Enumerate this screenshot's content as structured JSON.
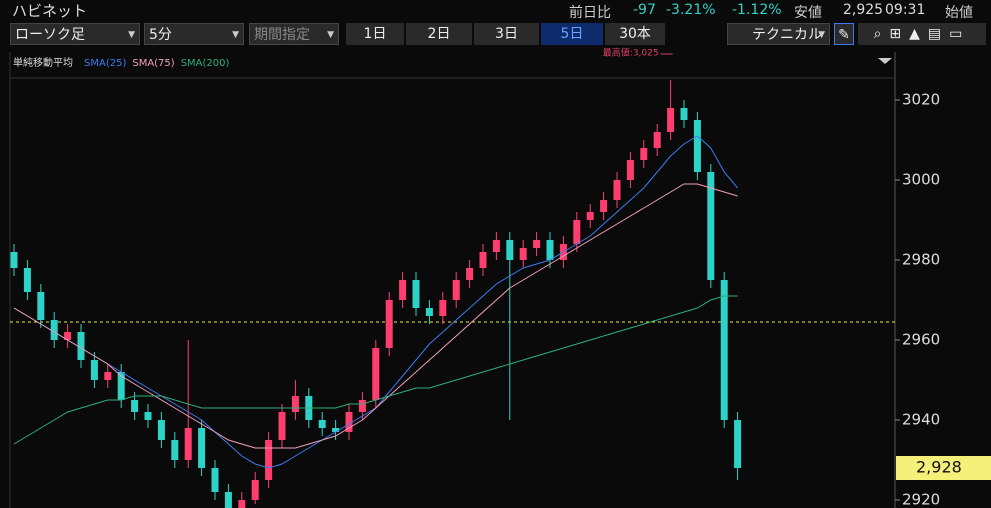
{
  "header": {
    "name": "ハビネット",
    "change_label": "前日比",
    "change": "-97",
    "change_pct": "-3.21%",
    "change_pct2": "-1.12%",
    "low_label": "安値",
    "low": "2,925",
    "time": "09:31",
    "open_label": "始値"
  },
  "toolbar": {
    "chart_kind": "ローソク足",
    "interval": "5分",
    "range": "期間指定",
    "periods": [
      "1日",
      "2日",
      "3日",
      "5日",
      "30本"
    ],
    "active_period": 3,
    "technical": "テクニカル"
  },
  "chart_data": {
    "type": "candlestick",
    "legend_title": "単純移動平均",
    "annotation": "最高値:3,025",
    "open": [
      2982,
      2978,
      2972,
      2965,
      2960,
      2962,
      2955,
      2950,
      2952,
      2945,
      2942,
      2940,
      2935,
      2930,
      2938,
      2928,
      2922,
      2918,
      2920,
      2925,
      2935,
      2942,
      2946,
      2940,
      2938,
      2937,
      2942,
      2945,
      2958,
      2970,
      2975,
      2968,
      2966,
      2970,
      2975,
      2978,
      2982,
      2985,
      2980,
      2983,
      2985,
      2980,
      2984,
      2990,
      2992,
      2995,
      3000,
      3005,
      3008,
      3012,
      3018,
      3015,
      3002,
      2975,
      2940
    ],
    "high": [
      2984,
      2980,
      2974,
      2967,
      2964,
      2964,
      2957,
      2954,
      2954,
      2947,
      2944,
      2942,
      2937,
      2960,
      2940,
      2930,
      2924,
      2922,
      2927,
      2937,
      2944,
      2950,
      2948,
      2942,
      2940,
      2944,
      2947,
      2960,
      2972,
      2977,
      2977,
      2970,
      2972,
      2977,
      2980,
      2984,
      2987,
      2987,
      2985,
      2987,
      2987,
      2986,
      2992,
      2994,
      2997,
      3002,
      3007,
      3010,
      3014,
      3025,
      3020,
      3017,
      3004,
      2977,
      2942
    ],
    "low": [
      2976,
      2970,
      2963,
      2958,
      2958,
      2953,
      2948,
      2948,
      2943,
      2940,
      2938,
      2933,
      2928,
      2928,
      2926,
      2920,
      2918,
      2918,
      2919,
      2923,
      2933,
      2940,
      2938,
      2936,
      2935,
      2935,
      2940,
      2943,
      2956,
      2968,
      2966,
      2964,
      2964,
      2968,
      2973,
      2976,
      2980,
      2940,
      2978,
      2981,
      2978,
      2978,
      2982,
      2988,
      2990,
      2993,
      2998,
      3003,
      3006,
      3010,
      3013,
      3000,
      2973,
      2938,
      2925
    ],
    "close": [
      2978,
      2972,
      2965,
      2960,
      2962,
      2955,
      2950,
      2952,
      2945,
      2942,
      2940,
      2935,
      2930,
      2938,
      2928,
      2922,
      2918,
      2920,
      2925,
      2935,
      2942,
      2946,
      2940,
      2938,
      2937,
      2942,
      2945,
      2958,
      2970,
      2975,
      2968,
      2966,
      2970,
      2975,
      2978,
      2982,
      2985,
      2980,
      2983,
      2985,
      2980,
      2984,
      2990,
      2992,
      2995,
      3000,
      3005,
      3008,
      3012,
      3018,
      3015,
      3002,
      2975,
      2940,
      2928
    ],
    "up_color": "#ff3d6e",
    "down_color": "#2ed3c8",
    "series": [
      {
        "name": "SMA(25)",
        "color": "#3b7bf0",
        "values": [
          2968,
          2966,
          2964,
          2962,
          2960,
          2958,
          2956,
          2954,
          2952,
          2950,
          2948,
          2946,
          2944,
          2942,
          2940,
          2937,
          2934,
          2931,
          2929,
          2928,
          2929,
          2931,
          2933,
          2935,
          2937,
          2939,
          2941,
          2943,
          2947,
          2951,
          2955,
          2959,
          2962,
          2965,
          2968,
          2971,
          2974,
          2976,
          2978,
          2979,
          2980,
          2982,
          2984,
          2986,
          2989,
          2992,
          2995,
          2998,
          3002,
          3006,
          3009,
          3011,
          3008,
          3002,
          2998
        ]
      },
      {
        "name": "SMA(75)",
        "color": "#f0a0b8",
        "values": [
          2968,
          2966,
          2964,
          2962,
          2960,
          2958,
          2956,
          2954,
          2951,
          2949,
          2947,
          2945,
          2943,
          2941,
          2939,
          2937,
          2935,
          2934,
          2933,
          2933,
          2933,
          2933,
          2934,
          2935,
          2936,
          2938,
          2940,
          2943,
          2946,
          2949,
          2952,
          2955,
          2958,
          2961,
          2964,
          2967,
          2970,
          2973,
          2975,
          2977,
          2979,
          2981,
          2983,
          2985,
          2987,
          2989,
          2991,
          2993,
          2995,
          2997,
          2999,
          2999,
          2998,
          2997,
          2996
        ]
      },
      {
        "name": "SMA(200)",
        "color": "#2fae7a",
        "values": [
          2934,
          2936,
          2938,
          2940,
          2942,
          2943,
          2944,
          2945,
          2945,
          2946,
          2946,
          2946,
          2945,
          2944,
          2943,
          2943,
          2943,
          2943,
          2943,
          2943,
          2943,
          2943,
          2943,
          2943,
          2943,
          2944,
          2944,
          2945,
          2946,
          2947,
          2948,
          2948,
          2949,
          2950,
          2951,
          2952,
          2953,
          2954,
          2955,
          2956,
          2957,
          2958,
          2959,
          2960,
          2961,
          2962,
          2963,
          2964,
          2965,
          2966,
          2967,
          2968,
          2970,
          2971,
          2971
        ]
      }
    ],
    "ylim": [
      2918,
      3032
    ],
    "yticks": [
      2920,
      2940,
      2960,
      2980,
      3000,
      3020
    ],
    "dashed_line": 2964.5,
    "current_price": {
      "value": 2928,
      "label": "2,928"
    }
  }
}
